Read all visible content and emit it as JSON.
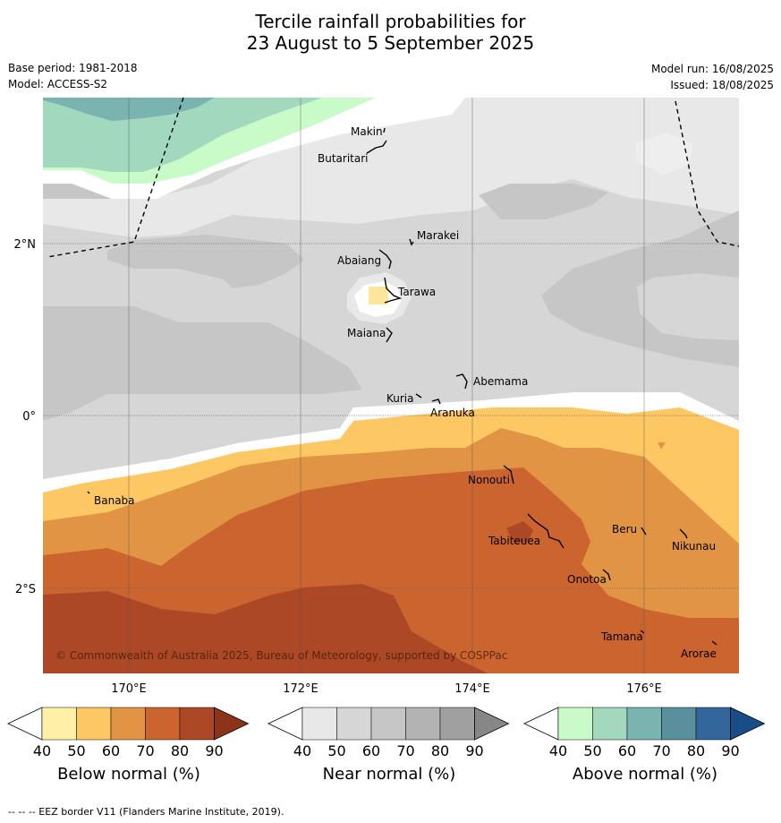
{
  "title": {
    "line1": "Tercile rainfall probabilities for",
    "line2": "23 August to 5 September 2025"
  },
  "meta": {
    "base_period": "Base period: 1981-2018",
    "model": "Model: ACCESS-S2",
    "model_run": "Model run: 16/08/2025",
    "issued": "Issued: 18/08/2025"
  },
  "axes": {
    "x_ticks": [
      "170°E",
      "172°E",
      "174°E",
      "176°E"
    ],
    "y_ticks": [
      "2°N",
      "0°",
      "2°S"
    ]
  },
  "places": [
    "Makin",
    "Butaritari",
    "Marakei",
    "Abaiang",
    "Tarawa",
    "Maiana",
    "Abemama",
    "Kuria",
    "Aranuka",
    "Nonouti",
    "Banaba",
    "Beru",
    "Nikunau",
    "Tabiteuea",
    "Onotoa",
    "Tamana",
    "Arorae"
  ],
  "copyright": "© Commonwealth of Australia 2025, Bureau of Meteorology, supported by COSPPac",
  "legends": {
    "ticks": [
      "40",
      "50",
      "60",
      "70",
      "80",
      "90"
    ],
    "below": {
      "label": "Below normal (%)",
      "colors": [
        "#fff0a8",
        "#fdc864",
        "#e09444",
        "#cc6430",
        "#ad4826",
        "#8b3419"
      ]
    },
    "near": {
      "label": "Near normal (%)",
      "colors": [
        "#e8e8e8",
        "#d6d6d6",
        "#c6c6c6",
        "#b3b3b3",
        "#a0a0a0",
        "#878787"
      ]
    },
    "above": {
      "label": "Above normal (%)",
      "colors": [
        "#c9fbc9",
        "#a2d8be",
        "#7ab4b0",
        "#5a909e",
        "#33669a",
        "#194d88"
      ]
    }
  },
  "footnote": "--  --  -- EEZ border V11 (Flanders Marine Institute, 2019)."
}
